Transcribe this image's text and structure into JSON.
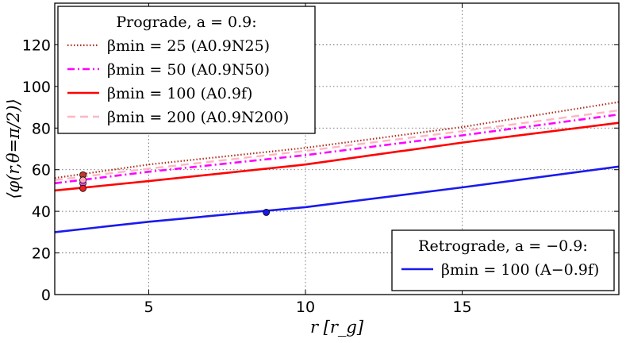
{
  "chart_data": {
    "type": "line",
    "xlabel": "r [r_g]",
    "ylabel": "⟨φ(r,θ=π/2)⟩",
    "xlim": [
      2.0,
      20.0
    ],
    "ylim": [
      0,
      140
    ],
    "xticks": [
      5,
      10,
      15
    ],
    "yticks": [
      0,
      20,
      40,
      60,
      80,
      100,
      120
    ],
    "grid": true,
    "legends": [
      {
        "placement": "upper-left",
        "title": "Prograde, a = 0.9:",
        "entries": [
          {
            "label": "βmin = 25 (A0.9N25)",
            "series": "A0.9N25"
          },
          {
            "label": "βmin = 50 (A0.9N50)",
            "series": "A0.9N50"
          },
          {
            "label": "βmin = 100 (A0.9f)",
            "series": "A0.9f"
          },
          {
            "label": "βmin = 200 (A0.9N200)",
            "series": "A0.9N200"
          }
        ]
      },
      {
        "placement": "lower-right",
        "title": "Retrograde, a = −0.9:",
        "entries": [
          {
            "label": "βmin = 100 (A−0.9f)",
            "series": "A-0.9f"
          }
        ]
      }
    ],
    "series": [
      {
        "name": "A0.9N25",
        "style": "dotted",
        "color": "#b03020",
        "x": [
          2.0,
          5,
          10,
          15,
          20
        ],
        "y": [
          56,
          62.5,
          70.5,
          80.5,
          92.5
        ],
        "marker": {
          "x": 2.9,
          "y": 57.5,
          "color": "#c0392b"
        }
      },
      {
        "name": "A0.9N50",
        "style": "dashdot",
        "color": "#ff00ff",
        "x": [
          2.0,
          5,
          10,
          15,
          20
        ],
        "y": [
          53.5,
          59,
          67,
          76.5,
          86.5
        ],
        "marker": {
          "x": 2.9,
          "y": 53.5,
          "color": "#ff44ff"
        }
      },
      {
        "name": "A0.9f",
        "style": "solid",
        "color": "#ff0000",
        "x": [
          2.0,
          5,
          10,
          15,
          20
        ],
        "y": [
          50,
          54.5,
          62.5,
          73,
          82.5
        ],
        "marker": {
          "x": 2.9,
          "y": 51,
          "color": "#ee2222"
        }
      },
      {
        "name": "A0.9N200",
        "style": "dashed",
        "color": "#ffb6c1",
        "x": [
          2.0,
          5,
          10,
          15,
          20
        ],
        "y": [
          55,
          60.5,
          69,
          78.5,
          88.5
        ],
        "marker": {
          "x": 2.9,
          "y": 55,
          "color": "#ffaabb"
        }
      },
      {
        "name": "A-0.9f",
        "style": "solid",
        "color": "#1a1aee",
        "x": [
          2.0,
          5,
          10,
          15,
          20
        ],
        "y": [
          30,
          35,
          42,
          51.5,
          61.5
        ],
        "marker": {
          "x": 8.75,
          "y": 39.5,
          "color": "#1a1aee"
        }
      }
    ]
  }
}
